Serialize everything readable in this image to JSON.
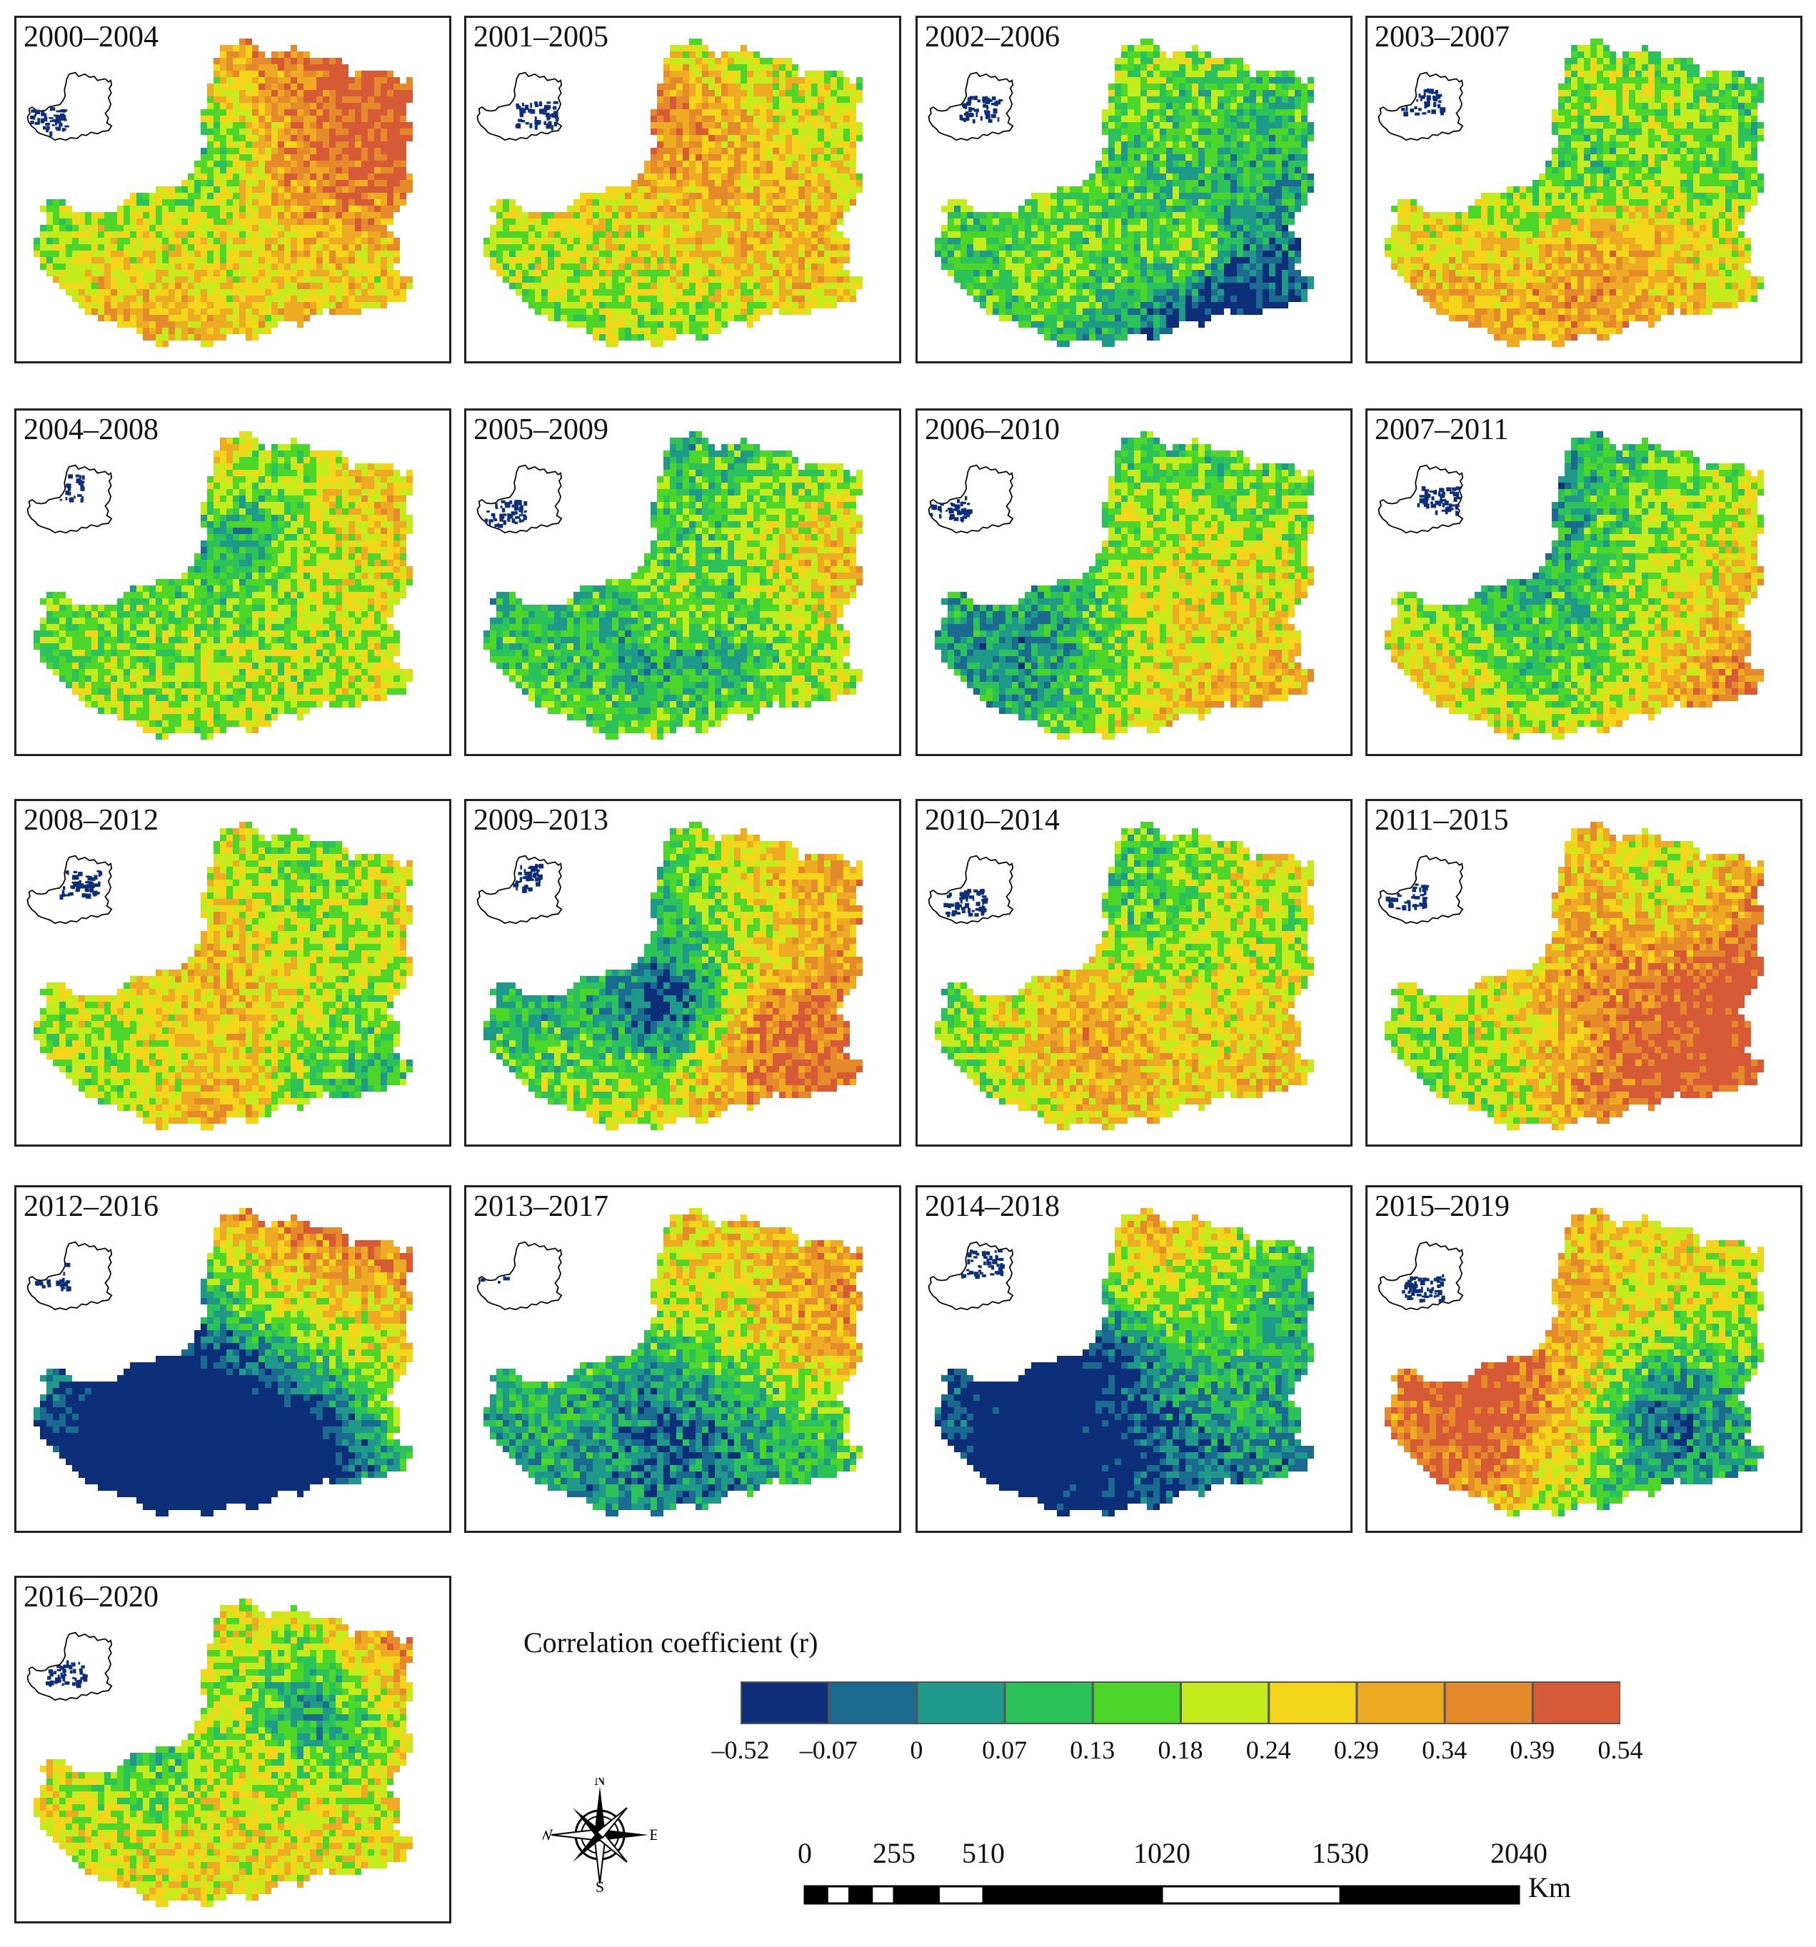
{
  "panels": [
    {
      "label": "2000–2004",
      "seed": 1,
      "bias": 0.55,
      "gx": 0.45,
      "gy": 0.0
    },
    {
      "label": "2001–2005",
      "seed": 2,
      "bias": 0.05,
      "gx": 0.0,
      "gy": 0.0
    },
    {
      "label": "2002–2006",
      "seed": 3,
      "bias": -0.35,
      "gx": -0.2,
      "gy": -0.4
    },
    {
      "label": "2003–2007",
      "seed": 4,
      "bias": 0.0,
      "gx": 0.0,
      "gy": 0.45
    },
    {
      "label": "2004–2008",
      "seed": 5,
      "bias": -0.05,
      "gx": 0.1,
      "gy": 0.2
    },
    {
      "label": "2005–2009",
      "seed": 6,
      "bias": -0.05,
      "gx": 0.4,
      "gy": 0.4
    },
    {
      "label": "2006–2010",
      "seed": 7,
      "bias": 0.05,
      "gx": 0.2,
      "gy": 0.5
    },
    {
      "label": "2007–2011",
      "seed": 8,
      "bias": 0.25,
      "gx": 0.3,
      "gy": 0.6
    },
    {
      "label": "2008–2012",
      "seed": 9,
      "bias": 0.2,
      "gx": 0.1,
      "gy": -0.1
    },
    {
      "label": "2009–2013",
      "seed": 10,
      "bias": 0.3,
      "gx": 0.4,
      "gy": 0.1
    },
    {
      "label": "2010–2014",
      "seed": 11,
      "bias": 0.1,
      "gx": 0.4,
      "gy": 0.0
    },
    {
      "label": "2011–2015",
      "seed": 12,
      "bias": 0.3,
      "gx": 0.3,
      "gy": -0.2
    },
    {
      "label": "2012–2016",
      "seed": 13,
      "bias": 0.0,
      "gx": 0.3,
      "gy": -0.8
    },
    {
      "label": "2013–2017",
      "seed": 14,
      "bias": 0.0,
      "gx": 0.4,
      "gy": -0.3
    },
    {
      "label": "2014–2018",
      "seed": 15,
      "bias": -0.1,
      "gx": -0.2,
      "gy": -0.5
    },
    {
      "label": "2015–2019",
      "seed": 16,
      "bias": 0.0,
      "gx": -0.2,
      "gy": -0.4
    },
    {
      "label": "2016–2020",
      "seed": 17,
      "bias": 0.3,
      "gx": 0.0,
      "gy": 0.0
    }
  ],
  "legend": {
    "title": "Correlation coefficient (r)",
    "colors": [
      "#0d2f7a",
      "#1a6b8f",
      "#1f9a8a",
      "#2bc25a",
      "#4cd62a",
      "#c4ec1c",
      "#f3d51a",
      "#eeaa22",
      "#e58a2a",
      "#d65a35"
    ],
    "ticks": [
      "–0.52",
      "–0.07",
      "0",
      "0.07",
      "0.13",
      "0.18",
      "0.24",
      "0.29",
      "0.34",
      "0.39",
      "0.54"
    ]
  },
  "compass": {
    "n": "N",
    "s": "S",
    "e": "E",
    "w": "W"
  },
  "scale": {
    "labels": [
      "0",
      "255",
      "510",
      "1020",
      "1530",
      "2040"
    ],
    "km_values": [
      0,
      255,
      510,
      1020,
      1530,
      2040
    ],
    "unit": "Km"
  }
}
